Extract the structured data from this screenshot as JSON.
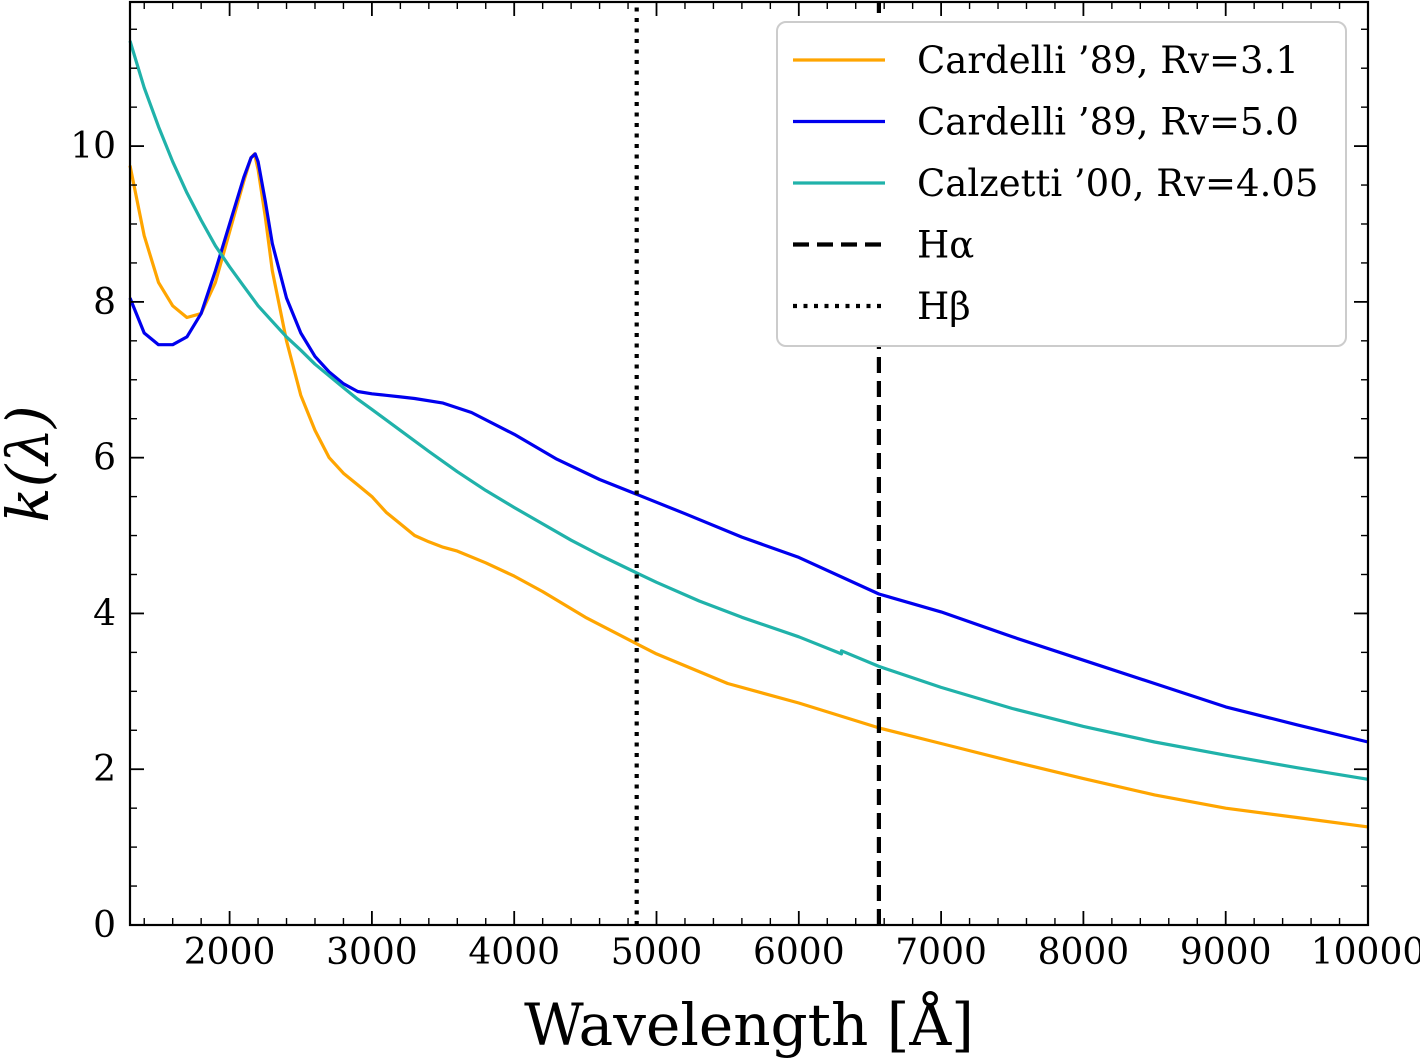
{
  "chart_data": {
    "type": "line",
    "xlabel": "Wavelength [Å]",
    "ylabel": "k(λ)",
    "xlim": [
      1300,
      10000
    ],
    "ylim": [
      0,
      11.85
    ],
    "xticks": [
      2000,
      3000,
      4000,
      5000,
      6000,
      7000,
      8000,
      9000,
      10000
    ],
    "yticks": [
      0,
      2,
      4,
      6,
      8,
      10
    ],
    "grid": false,
    "legend_position": "top-right",
    "series": [
      {
        "name": "Cardelli ’89, Rv=3.1",
        "color": "#FFA500",
        "style": "solid",
        "x": [
          1300,
          1400,
          1500,
          1600,
          1700,
          1800,
          1900,
          2000,
          2100,
          2150,
          2175,
          2200,
          2250,
          2300,
          2400,
          2500,
          2600,
          2700,
          2800,
          2900,
          3000,
          3100,
          3200,
          3300,
          3400,
          3500,
          3600,
          3800,
          4000,
          4200,
          4500,
          4861,
          5000,
          5500,
          6000,
          6563,
          7000,
          7500,
          8000,
          8500,
          9000,
          9500,
          10000
        ],
        "y": [
          9.75,
          8.85,
          8.25,
          7.95,
          7.8,
          7.85,
          8.25,
          8.9,
          9.55,
          9.85,
          9.9,
          9.7,
          9.1,
          8.4,
          7.5,
          6.8,
          6.35,
          6.0,
          5.8,
          5.65,
          5.5,
          5.3,
          5.15,
          5.0,
          4.92,
          4.85,
          4.8,
          4.65,
          4.48,
          4.28,
          3.95,
          3.61,
          3.48,
          3.1,
          2.85,
          2.53,
          2.33,
          2.1,
          1.88,
          1.67,
          1.5,
          1.38,
          1.26
        ]
      },
      {
        "name": "Cardelli ’89, Rv=5.0",
        "color": "#0000EE",
        "style": "solid",
        "x": [
          1300,
          1400,
          1500,
          1600,
          1700,
          1800,
          1900,
          2000,
          2100,
          2150,
          2180,
          2200,
          2250,
          2300,
          2400,
          2500,
          2600,
          2700,
          2800,
          2900,
          3000,
          3100,
          3200,
          3300,
          3500,
          3700,
          4000,
          4300,
          4600,
          4861,
          5200,
          5600,
          6000,
          6563,
          7000,
          7500,
          8000,
          8500,
          9000,
          9500,
          10000
        ],
        "y": [
          8.05,
          7.6,
          7.45,
          7.45,
          7.55,
          7.85,
          8.4,
          9.0,
          9.6,
          9.85,
          9.9,
          9.8,
          9.3,
          8.75,
          8.05,
          7.6,
          7.3,
          7.1,
          6.95,
          6.85,
          6.82,
          6.8,
          6.78,
          6.76,
          6.7,
          6.58,
          6.3,
          5.98,
          5.72,
          5.53,
          5.28,
          4.98,
          4.72,
          4.25,
          4.02,
          3.7,
          3.4,
          3.1,
          2.8,
          2.57,
          2.35
        ]
      },
      {
        "name": "Calzetti ’00, Rv=4.05",
        "color": "#20B2AA",
        "style": "solid",
        "x": [
          1300,
          1400,
          1500,
          1600,
          1700,
          1800,
          1900,
          2000,
          2100,
          2200,
          2300,
          2400,
          2500,
          2600,
          2700,
          2800,
          2900,
          3000,
          3200,
          3400,
          3600,
          3800,
          4000,
          4200,
          4400,
          4600,
          4861,
          5000,
          5300,
          5600,
          6000,
          6300,
          6300,
          6563,
          7000,
          7500,
          8000,
          8500,
          9000,
          9500,
          10000
        ],
        "y": [
          11.35,
          10.75,
          10.25,
          9.8,
          9.4,
          9.05,
          8.72,
          8.45,
          8.2,
          7.95,
          7.75,
          7.55,
          7.38,
          7.2,
          7.05,
          6.9,
          6.75,
          6.62,
          6.35,
          6.08,
          5.82,
          5.58,
          5.36,
          5.15,
          4.94,
          4.75,
          4.52,
          4.4,
          4.16,
          3.95,
          3.7,
          3.48,
          3.52,
          3.32,
          3.05,
          2.78,
          2.55,
          2.35,
          2.18,
          2.02,
          1.87
        ]
      },
      {
        "name": "Hα",
        "color": "#000000",
        "style": "dashed",
        "x": [
          6563,
          6563
        ],
        "y": [
          0,
          11.85
        ]
      },
      {
        "name": "Hβ",
        "color": "#000000",
        "style": "dotted",
        "x": [
          4861,
          4861
        ],
        "y": [
          0,
          11.85
        ]
      }
    ]
  }
}
